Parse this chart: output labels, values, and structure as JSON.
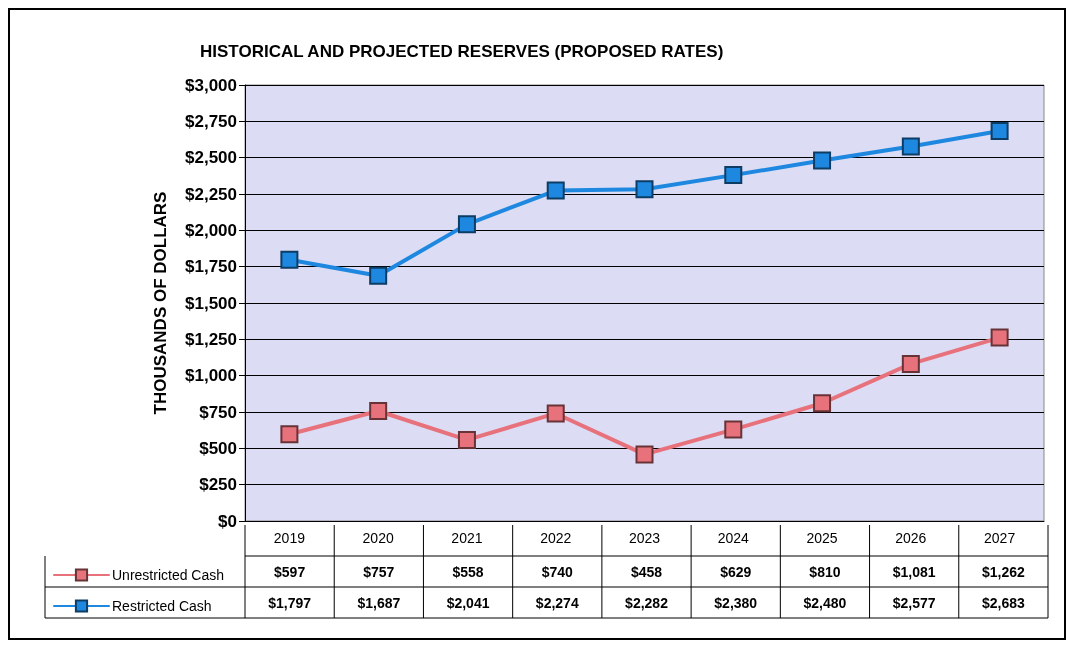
{
  "chart_data": {
    "type": "line",
    "title": "HISTORICAL AND PROJECTED RESERVES (PROPOSED RATES)",
    "ylabel": "THOUSANDS OF DOLLARS",
    "categories": [
      "2019",
      "2020",
      "2021",
      "2022",
      "2023",
      "2024",
      "2025",
      "2026",
      "2027"
    ],
    "series": [
      {
        "name": "Unrestricted Cash",
        "color": "#e8727c",
        "values": [
          597,
          757,
          558,
          740,
          458,
          629,
          810,
          1081,
          1262
        ],
        "value_labels": [
          "$597",
          "$757",
          "$558",
          "$740",
          "$458",
          "$629",
          "$810",
          "$1,081",
          "$1,262"
        ]
      },
      {
        "name": "Restricted Cash",
        "color": "#1e88e0",
        "values": [
          1797,
          1687,
          2041,
          2274,
          2282,
          2380,
          2480,
          2577,
          2683
        ],
        "value_labels": [
          "$1,797",
          "$1,687",
          "$2,041",
          "$2,274",
          "$2,282",
          "$2,380",
          "$2,480",
          "$2,577",
          "$2,683"
        ]
      }
    ],
    "ylim": [
      0,
      3000
    ],
    "yticks": [
      {
        "value": 0,
        "label": "$0"
      },
      {
        "value": 250,
        "label": "$250"
      },
      {
        "value": 500,
        "label": "$500"
      },
      {
        "value": 750,
        "label": "$750"
      },
      {
        "value": 1000,
        "label": "$1,000"
      },
      {
        "value": 1250,
        "label": "$1,250"
      },
      {
        "value": 1500,
        "label": "$1,500"
      },
      {
        "value": 1750,
        "label": "$1,750"
      },
      {
        "value": 2000,
        "label": "$2,000"
      },
      {
        "value": 2250,
        "label": "$2,250"
      },
      {
        "value": 2500,
        "label": "$2,500"
      },
      {
        "value": 2750,
        "label": "$2,750"
      },
      {
        "value": 3000,
        "label": "$3,000"
      }
    ],
    "grid": "y",
    "legend": "bottom",
    "marker": "square",
    "line_style": "solid"
  }
}
